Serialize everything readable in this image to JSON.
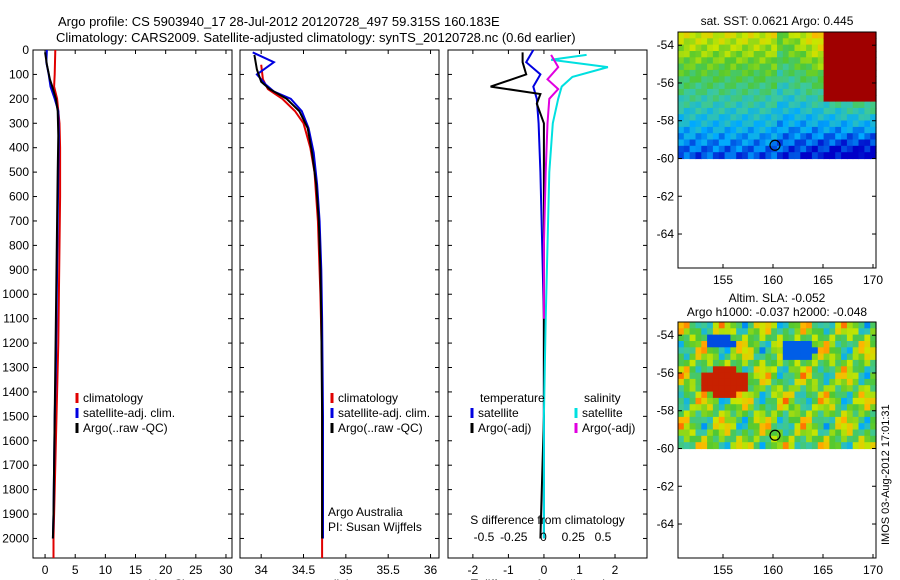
{
  "header": {
    "title_line1": "Argo profile: CS 5903940_17 28-Jul-2012 20120728_497 59.315S 160.183E",
    "title_line2": "Climatology: CARS2009. Satellite-adjusted climatology: synTS_20120728.nc (0.6d earlier)"
  },
  "footer": {
    "vertical_stamp": "IMOS 03-Aug-2012 17:01:31"
  },
  "colors": {
    "climatology": "#e00000",
    "satellite": "#0000e0",
    "argo": "#000000",
    "sal_satellite": "#00e0e0",
    "sal_argo": "#e000e0"
  },
  "chart_data": [
    {
      "type": "line",
      "name": "temperature-profile",
      "xlabel": "temperature (deg C)",
      "ylabel": "",
      "xlim": [
        -2,
        31
      ],
      "ylim": [
        2080,
        0
      ],
      "xticks": [
        0,
        5,
        10,
        15,
        20,
        25,
        30
      ],
      "yticks": [
        0,
        100,
        200,
        300,
        400,
        500,
        600,
        700,
        800,
        900,
        1000,
        1100,
        1200,
        1300,
        1400,
        1500,
        1600,
        1700,
        1800,
        1900,
        2000
      ],
      "legend": [
        "climatology",
        "satellite-adj. clim.",
        "Argo(..raw -QC)"
      ],
      "legend_position": "bottom-right",
      "series": [
        {
          "name": "climatology",
          "color": "#e00000",
          "points": [
            [
              1.7,
              0
            ],
            [
              1.6,
              100
            ],
            [
              1.5,
              150
            ],
            [
              2.0,
              200
            ],
            [
              2.4,
              300
            ],
            [
              2.5,
              400
            ],
            [
              2.5,
              600
            ],
            [
              2.4,
              800
            ],
            [
              2.3,
              1000
            ],
            [
              2.2,
              1200
            ],
            [
              2.0,
              1400
            ],
            [
              1.8,
              1600
            ],
            [
              1.6,
              1800
            ],
            [
              1.4,
              2000
            ],
            [
              1.4,
              2080
            ]
          ]
        },
        {
          "name": "satellite-adj. clim.",
          "color": "#0000e0",
          "points": [
            [
              0.3,
              0
            ],
            [
              0.2,
              50
            ],
            [
              0.6,
              100
            ],
            [
              0.9,
              150
            ],
            [
              1.6,
              200
            ],
            [
              2.2,
              250
            ],
            [
              2.3,
              350
            ],
            [
              2.2,
              500
            ],
            [
              2.1,
              700
            ],
            [
              2.0,
              900
            ],
            [
              1.9,
              1100
            ],
            [
              1.8,
              1300
            ],
            [
              1.6,
              1500
            ],
            [
              1.5,
              1700
            ],
            [
              1.4,
              1900
            ],
            [
              1.3,
              2000
            ]
          ]
        },
        {
          "name": "Argo(..raw -QC)",
          "color": "#000000",
          "points": [
            [
              0.0,
              10
            ],
            [
              0.3,
              60
            ],
            [
              0.8,
              120
            ],
            [
              1.2,
              150
            ],
            [
              1.8,
              200
            ],
            [
              2.1,
              250
            ],
            [
              2.2,
              350
            ],
            [
              2.1,
              500
            ],
            [
              2.0,
              700
            ],
            [
              1.9,
              900
            ],
            [
              1.8,
              1100
            ],
            [
              1.7,
              1300
            ],
            [
              1.6,
              1500
            ],
            [
              1.5,
              1700
            ],
            [
              1.4,
              1900
            ],
            [
              1.3,
              2000
            ]
          ]
        }
      ]
    },
    {
      "type": "line",
      "name": "salinity-profile",
      "xlabel": "salinity",
      "xlim": [
        33.75,
        36.1
      ],
      "ylim": [
        2080,
        0
      ],
      "xticks": [
        34,
        34.5,
        35,
        35.5,
        36
      ],
      "legend": [
        "climatology",
        "satellite-adj. clim.",
        "Argo(..raw -QC)"
      ],
      "annotation": [
        "Argo Australia",
        "PI: Susan Wijffels"
      ],
      "series": [
        {
          "name": "climatology",
          "color": "#e00000",
          "points": [
            [
              34.0,
              60
            ],
            [
              34.02,
              120
            ],
            [
              34.08,
              160
            ],
            [
              34.25,
              200
            ],
            [
              34.4,
              250
            ],
            [
              34.5,
              300
            ],
            [
              34.58,
              400
            ],
            [
              34.63,
              500
            ],
            [
              34.67,
              700
            ],
            [
              34.7,
              1000
            ],
            [
              34.72,
              1300
            ],
            [
              34.72,
              1600
            ],
            [
              34.72,
              2000
            ],
            [
              34.72,
              2080
            ]
          ]
        },
        {
          "name": "satellite-adj. clim.",
          "color": "#0000e0",
          "points": [
            [
              33.9,
              10
            ],
            [
              34.15,
              50
            ],
            [
              33.95,
              100
            ],
            [
              34.05,
              140
            ],
            [
              34.15,
              170
            ],
            [
              34.35,
              200
            ],
            [
              34.48,
              250
            ],
            [
              34.56,
              320
            ],
            [
              34.62,
              420
            ],
            [
              34.66,
              550
            ],
            [
              34.69,
              700
            ],
            [
              34.71,
              900
            ],
            [
              34.72,
              1100
            ],
            [
              34.73,
              1500
            ],
            [
              34.73,
              2000
            ]
          ]
        },
        {
          "name": "Argo(..raw -QC)",
          "color": "#000000",
          "points": [
            [
              33.92,
              20
            ],
            [
              33.95,
              80
            ],
            [
              34.0,
              130
            ],
            [
              34.1,
              160
            ],
            [
              34.3,
              200
            ],
            [
              34.45,
              250
            ],
            [
              34.55,
              320
            ],
            [
              34.6,
              420
            ],
            [
              34.65,
              550
            ],
            [
              34.68,
              700
            ],
            [
              34.7,
              900
            ],
            [
              34.71,
              1100
            ],
            [
              34.72,
              1500
            ],
            [
              34.72,
              2000
            ]
          ]
        }
      ]
    },
    {
      "type": "line",
      "name": "difference-profile",
      "xlabel": "T difference from climatology",
      "xlabel_top": "S difference from climatology",
      "xlim": [
        -2.7,
        2.9
      ],
      "ylim": [
        2080,
        0
      ],
      "xticks": [
        -2,
        -1,
        0,
        1,
        2
      ],
      "xticks_s": [
        -0.5,
        -0.25,
        0,
        0.25,
        0.5
      ],
      "xticks_s_labels": [
        "-0.5",
        "-0.25",
        "0",
        "0.25",
        "0.5"
      ],
      "legend_temp_header": "temperature",
      "legend_sal_header": "salinity",
      "legend_temp": [
        "satellite",
        "Argo(-adj)"
      ],
      "legend_sal": [
        "satellite",
        "Argo(-adj)"
      ],
      "series": [
        {
          "name": "temperature satellite",
          "color": "#0000e0",
          "points": [
            [
              -0.3,
              0
            ],
            [
              -0.5,
              50
            ],
            [
              -0.1,
              100
            ],
            [
              -0.3,
              150
            ],
            [
              -0.2,
              200
            ],
            [
              -0.15,
              300
            ],
            [
              -0.1,
              500
            ],
            [
              -0.05,
              800
            ],
            [
              0,
              1100
            ],
            [
              0,
              1500
            ],
            [
              0,
              2000
            ]
          ]
        },
        {
          "name": "temperature Argo(-adj)",
          "color": "#000000",
          "points": [
            [
              -0.6,
              10
            ],
            [
              -0.6,
              50
            ],
            [
              -0.5,
              100
            ],
            [
              -1.5,
              150
            ],
            [
              -0.1,
              180
            ],
            [
              -0.2,
              220
            ],
            [
              0.0,
              300
            ],
            [
              0.0,
              500
            ],
            [
              0.0,
              800
            ],
            [
              0.0,
              1100
            ],
            [
              0.0,
              1500
            ],
            [
              -0.1,
              2000
            ]
          ]
        },
        {
          "name": "salinity satellite",
          "color": "#00e0e0",
          "points": [
            [
              1.2,
              20
            ],
            [
              0.2,
              40
            ],
            [
              1.8,
              70
            ],
            [
              0.8,
              110
            ],
            [
              0.5,
              150
            ],
            [
              0.4,
              200
            ],
            [
              0.25,
              300
            ],
            [
              0.15,
              500
            ],
            [
              0.1,
              800
            ],
            [
              0.05,
              1100
            ],
            [
              0.0,
              1500
            ],
            [
              0.0,
              2000
            ]
          ]
        },
        {
          "name": "salinity Argo(-adj)",
          "color": "#e000e0",
          "points": [
            [
              0.2,
              20
            ],
            [
              0.4,
              70
            ],
            [
              0.1,
              120
            ],
            [
              0.4,
              160
            ],
            [
              0.15,
              200
            ],
            [
              0.1,
              300
            ],
            [
              0.05,
              500
            ],
            [
              0.0,
              800
            ],
            [
              0.0,
              1100
            ]
          ]
        }
      ]
    },
    {
      "type": "heatmap",
      "name": "sst-map",
      "title": "sat. SST: 0.0621  Argo: 0.445",
      "xlim": [
        150.5,
        170.3
      ],
      "ylim": [
        -65.8,
        -53.3
      ],
      "xticks": [
        155,
        160,
        165,
        170
      ],
      "yticks": [
        -54,
        -56,
        -58,
        -60,
        -62,
        -64
      ],
      "data_extent_lat": [
        -60,
        -53.3
      ],
      "marker": [
        160.2,
        -59.3
      ]
    },
    {
      "type": "heatmap",
      "name": "sla-map",
      "title_line1": "Altim. SLA: -0.052",
      "title_line2": "Argo h1000: -0.037 h2000: -0.048",
      "xlim": [
        150.5,
        170.3
      ],
      "ylim": [
        -65.8,
        -53.3
      ],
      "xticks": [
        155,
        160,
        165,
        170
      ],
      "yticks": [
        -54,
        -56,
        -58,
        -60,
        -62,
        -64
      ],
      "data_extent_lat": [
        -60,
        -53.3
      ],
      "marker": [
        160.2,
        -59.3
      ]
    }
  ]
}
